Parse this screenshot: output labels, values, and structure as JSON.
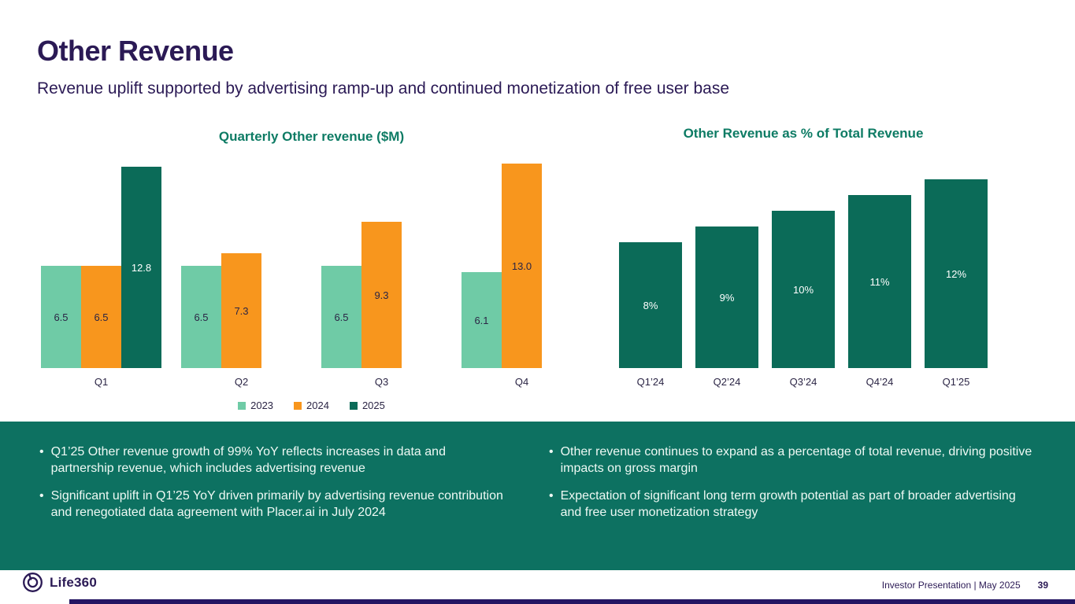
{
  "slide": {
    "title": "Other Revenue",
    "subtitle": "Revenue uplift supported by advertising ramp-up and continued monetization of free user base"
  },
  "chart_data": [
    {
      "type": "bar",
      "title": "Quarterly Other revenue ($M)",
      "categories": [
        "Q1",
        "Q2",
        "Q3",
        "Q4"
      ],
      "series": [
        {
          "name": "2023",
          "color": "#6fcba6",
          "label_color": "#2b2545",
          "values": [
            6.5,
            6.5,
            6.5,
            6.1
          ]
        },
        {
          "name": "2024",
          "color": "#f8961d",
          "label_color": "#2b2545",
          "values": [
            6.5,
            7.3,
            9.3,
            13.0
          ]
        },
        {
          "name": "2025",
          "color": "#0b6b58",
          "label_color": "#ffffff",
          "values": [
            12.8,
            null,
            null,
            null
          ]
        }
      ],
      "value_label_decimals": 1,
      "legend_position": "bottom",
      "ylim": [
        0,
        13.4
      ],
      "grid": false,
      "axes_hidden": true
    },
    {
      "type": "bar",
      "title": "Other Revenue as % of Total Revenue",
      "categories": [
        "Q1’24",
        "Q2’24",
        "Q3’24",
        "Q4’24",
        "Q1’25"
      ],
      "values": [
        8,
        9,
        10,
        11,
        12
      ],
      "value_labels": [
        "8%",
        "9%",
        "10%",
        "11%",
        "12%"
      ],
      "bar_color": "#0b6b58",
      "label_color": "#ffffff",
      "ylim": [
        0,
        13.4
      ],
      "grid": false,
      "axes_hidden": true
    }
  ],
  "panels": {
    "left": [
      "Q1’25 Other revenue growth of 99% YoY reflects increases in data and partnership revenue, which includes advertising revenue",
      "Significant uplift in Q1’25 YoY driven primarily by advertising revenue contribution and renegotiated data agreement with Placer.ai in July 2024"
    ],
    "right": [
      "Other revenue continues to expand as a percentage of total revenue, driving positive impacts on gross margin",
      "Expectation of significant long term growth potential as part of broader advertising and free user monetization strategy"
    ]
  },
  "footer": {
    "brand": "Life360",
    "caption": "Investor Presentation  | May 2025",
    "page": "39"
  },
  "colors": {
    "heading": "#2b1a55",
    "chart_title": "#0d7b64",
    "band": "#0d7161",
    "bullet_text": "#eef9f4",
    "accent_bar": "#241663"
  }
}
